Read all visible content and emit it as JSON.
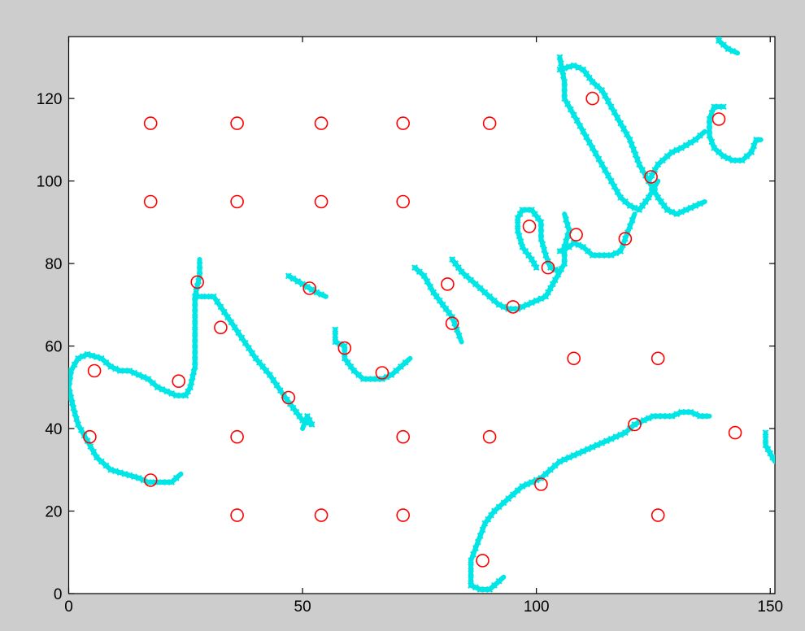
{
  "chart_data": {
    "type": "scatter",
    "title": "",
    "xlabel": "",
    "ylabel": "",
    "xlim": [
      0,
      151
    ],
    "ylim": [
      0,
      135
    ],
    "xticks": [
      0,
      50,
      100,
      150
    ],
    "yticks": [
      0,
      20,
      40,
      60,
      80,
      100,
      120
    ],
    "grid": false,
    "colors": {
      "stroke": "#00e5e5",
      "marker": "#ff0000",
      "background": "#cdcdcd",
      "axes": "#ffffff"
    },
    "series": [
      {
        "marker": "x",
        "style": "cyan-dense-stroke",
        "paths": [
          [
            [
              0.5,
              54
            ],
            [
              2,
              57
            ],
            [
              4,
              58
            ],
            [
              7,
              57
            ],
            [
              9,
              55
            ],
            [
              11,
              54
            ],
            [
              13,
              54
            ],
            [
              15,
              53
            ],
            [
              17,
              52
            ],
            [
              19,
              50
            ],
            [
              21,
              49
            ],
            [
              23,
              48
            ],
            [
              25,
              48
            ],
            [
              26,
              50
            ],
            [
              27,
              55
            ],
            [
              27,
              62
            ],
            [
              27,
              68
            ],
            [
              27,
              72
            ],
            [
              28,
              77
            ],
            [
              28,
              81
            ]
          ],
          [
            [
              28,
              72
            ],
            [
              31,
              72
            ],
            [
              34,
              67
            ],
            [
              37,
              62
            ],
            [
              40,
              57
            ],
            [
              43,
              53
            ],
            [
              46,
              48
            ],
            [
              48,
              45
            ],
            [
              50,
              42
            ],
            [
              52,
              41
            ],
            [
              51,
              43
            ],
            [
              50,
              40
            ]
          ],
          [
            [
              0.5,
              54
            ],
            [
              0,
              50
            ],
            [
              1,
              45
            ],
            [
              2,
              41
            ],
            [
              4,
              37
            ],
            [
              6,
              33
            ],
            [
              9,
              30
            ],
            [
              12,
              29
            ],
            [
              15,
              28
            ],
            [
              17,
              27
            ],
            [
              20,
              27
            ],
            [
              22,
              27
            ],
            [
              24,
              29
            ]
          ],
          [
            [
              47,
              77
            ],
            [
              50,
              75
            ],
            [
              53,
              73
            ],
            [
              55,
              72
            ]
          ],
          [
            [
              57,
              64
            ],
            [
              57,
              61
            ],
            [
              59,
              60
            ],
            [
              59,
              57
            ],
            [
              61,
              54
            ],
            [
              63,
              52
            ],
            [
              65,
              52
            ],
            [
              67,
              52
            ],
            [
              69,
              53
            ],
            [
              71,
              55
            ],
            [
              73,
              57
            ]
          ],
          [
            [
              74,
              79
            ],
            [
              76,
              77
            ],
            [
              78,
              73
            ],
            [
              80,
              70
            ],
            [
              82,
              67
            ],
            [
              83,
              64
            ],
            [
              84,
              61
            ]
          ],
          [
            [
              82,
              81
            ],
            [
              84,
              78
            ],
            [
              86,
              76
            ],
            [
              88,
              74
            ],
            [
              90,
              72
            ],
            [
              92,
              70
            ],
            [
              94,
              69
            ],
            [
              96,
              69
            ],
            [
              98,
              70
            ],
            [
              100,
              71
            ],
            [
              102,
              72
            ],
            [
              103,
              74
            ],
            [
              104,
              76
            ],
            [
              106,
              80
            ],
            [
              106,
              84
            ],
            [
              107,
              88
            ],
            [
              106,
              92
            ]
          ],
          [
            [
              100,
              79
            ],
            [
              99,
              81
            ],
            [
              97,
              84
            ],
            [
              96,
              88
            ],
            [
              96,
              91
            ],
            [
              97,
              93
            ],
            [
              99,
              93
            ],
            [
              101,
              90
            ],
            [
              101,
              86
            ],
            [
              102,
              82
            ],
            [
              103,
              79
            ],
            [
              105,
              78
            ]
          ],
          [
            [
              105,
              83
            ],
            [
              107,
              84
            ],
            [
              108,
              85
            ],
            [
              110,
              84
            ],
            [
              112,
              82
            ],
            [
              114,
              82
            ],
            [
              116,
              82
            ],
            [
              118,
              83
            ],
            [
              119,
              86
            ],
            [
              120,
              89
            ],
            [
              121,
              92
            ]
          ],
          [
            [
              105,
              130
            ],
            [
              106,
              124
            ],
            [
              106,
              120
            ],
            [
              108,
              116
            ],
            [
              110,
              112
            ],
            [
              112,
              108
            ],
            [
              114,
              104
            ],
            [
              116,
              100
            ],
            [
              118,
              96
            ],
            [
              120,
              94
            ],
            [
              122,
              93
            ],
            [
              124,
              96
            ],
            [
              126,
              100
            ]
          ],
          [
            [
              105,
              127
            ],
            [
              108,
              128
            ],
            [
              110,
              127
            ],
            [
              112,
              124
            ],
            [
              114,
              122
            ],
            [
              116,
              118
            ],
            [
              118,
              114
            ],
            [
              120,
              110
            ],
            [
              122,
              104
            ],
            [
              124,
              100
            ],
            [
              126,
              96
            ],
            [
              128,
              93
            ],
            [
              130,
              92
            ],
            [
              132,
              93
            ],
            [
              134,
              94
            ],
            [
              136,
              95
            ]
          ],
          [
            [
              124,
              100
            ],
            [
              126,
              104
            ],
            [
              129,
              107
            ],
            [
              131,
              108
            ],
            [
              134,
              110
            ],
            [
              136,
              112
            ]
          ],
          [
            [
              139,
              135
            ],
            [
              139,
              134
            ],
            [
              141,
              132
            ],
            [
              143,
              131
            ]
          ],
          [
            [
              140,
              118
            ],
            [
              138,
              118
            ],
            [
              137,
              115
            ],
            [
              137,
              111
            ],
            [
              138,
              108
            ],
            [
              140,
              106
            ],
            [
              142,
              105
            ],
            [
              144,
              105
            ],
            [
              146,
              107
            ],
            [
              147,
              110
            ],
            [
              148,
              110
            ]
          ],
          [
            [
              86,
              2
            ],
            [
              86,
              5
            ],
            [
              86,
              8
            ],
            [
              87,
              11
            ],
            [
              88,
              14
            ],
            [
              89,
              17
            ],
            [
              91,
              20
            ],
            [
              93,
              22
            ],
            [
              95,
              24
            ],
            [
              97,
              26
            ],
            [
              99,
              27
            ],
            [
              101,
              28
            ],
            [
              103,
              30
            ],
            [
              105,
              32
            ],
            [
              107,
              33
            ],
            [
              109,
              34
            ],
            [
              111,
              35
            ],
            [
              113,
              36
            ],
            [
              115,
              37
            ],
            [
              117,
              38
            ],
            [
              119,
              39
            ],
            [
              121,
              41
            ],
            [
              123,
              42
            ],
            [
              125,
              43
            ],
            [
              127,
              43
            ],
            [
              129,
              43
            ],
            [
              131,
              44
            ],
            [
              133,
              44
            ],
            [
              135,
              43
            ],
            [
              137,
              43
            ]
          ],
          [
            [
              86,
              2
            ],
            [
              88,
              1
            ],
            [
              90,
              1
            ],
            [
              92,
              3
            ],
            [
              93,
              4
            ]
          ],
          [
            [
              149,
              39
            ],
            [
              149,
              36
            ],
            [
              150,
              34
            ],
            [
              151,
              32
            ]
          ]
        ]
      },
      {
        "marker": "o",
        "x": [
          4.5,
          5.5,
          17.5,
          17.5,
          17.5,
          23.5,
          27.5,
          32.5,
          36,
          36,
          36,
          36,
          47,
          51.5,
          54,
          54,
          54,
          59,
          67,
          71.5,
          71.5,
          71.5,
          71.5,
          81,
          82,
          88.5,
          90,
          90,
          95,
          98.5,
          101,
          102.5,
          108,
          108.5,
          112,
          119,
          121,
          124.5,
          126,
          126,
          139,
          142.5
        ],
        "y": [
          38,
          54,
          27.5,
          95,
          114,
          51.5,
          75.5,
          64.5,
          114,
          95,
          38,
          19,
          47.5,
          74,
          114,
          95,
          19,
          59.5,
          53.5,
          114,
          95,
          38,
          19,
          75,
          65.5,
          8,
          114,
          38,
          69.5,
          89,
          26.5,
          79,
          57,
          87,
          120,
          86,
          41,
          101,
          57,
          19,
          115,
          39
        ]
      }
    ]
  }
}
